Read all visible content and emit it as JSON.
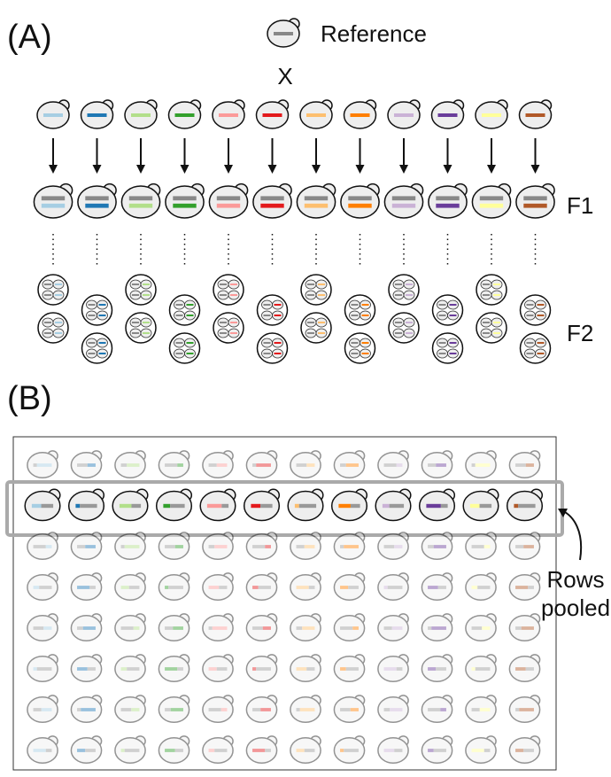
{
  "panel_a": {
    "label": "(A)",
    "reference": "Reference",
    "cross": "X",
    "generations": [
      "F1",
      "F2"
    ]
  },
  "panel_b": {
    "label": "(B)",
    "annotation": [
      "Rows",
      "pooled"
    ]
  },
  "strain_colors": [
    "#a6cee3",
    "#1f78b4",
    "#b2df8a",
    "#33a02c",
    "#fb9a99",
    "#e31a1c",
    "#fdbf6f",
    "#ff7f00",
    "#cab2d6",
    "#6a3d9a",
    "#ffff99",
    "#b15928"
  ]
}
